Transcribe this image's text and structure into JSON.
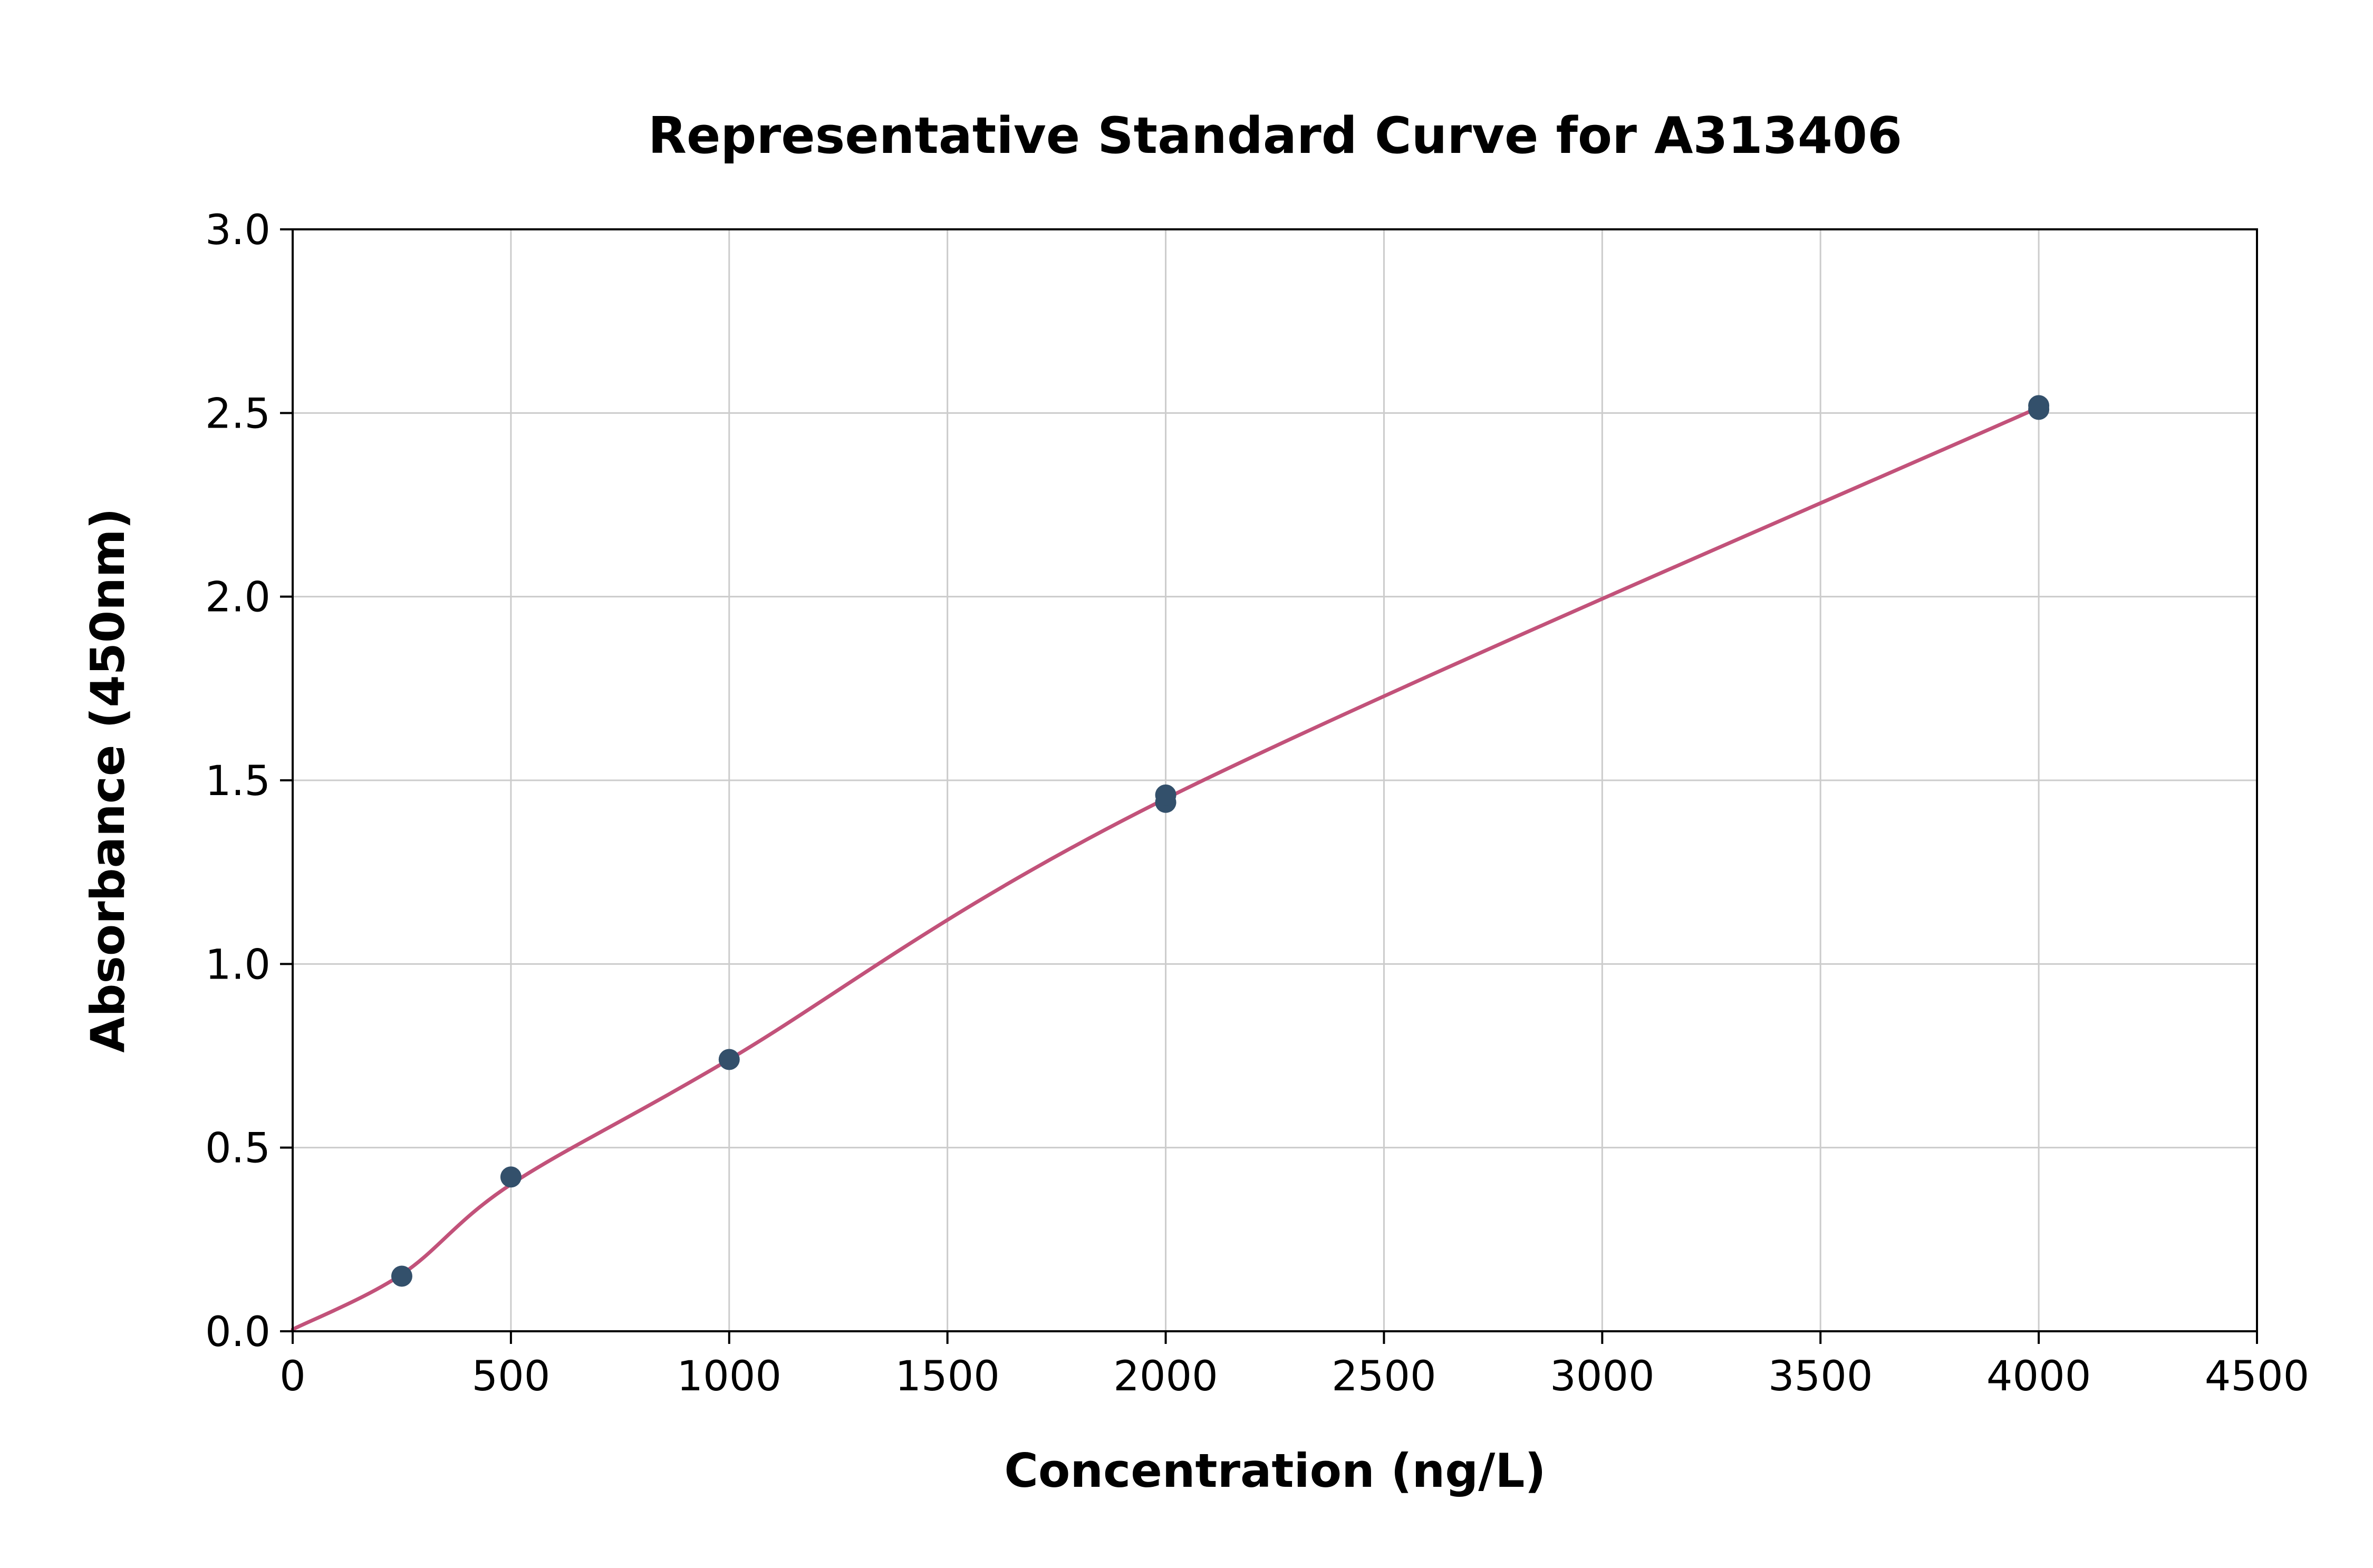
{
  "chart_data": {
    "type": "scatter",
    "title": "Representative Standard Curve for A313406",
    "xlabel": "Concentration (ng/L)",
    "ylabel": "Absorbance (450nm)",
    "xlim": [
      0,
      4500
    ],
    "ylim": [
      0,
      3
    ],
    "x_ticks": [
      0,
      500,
      1000,
      1500,
      2000,
      2500,
      3000,
      3500,
      4000,
      4500
    ],
    "x_tick_labels": [
      "0",
      "500",
      "1000",
      "1500",
      "2000",
      "2500",
      "3000",
      "3500",
      "4000",
      "4500"
    ],
    "y_ticks": [
      0,
      0.5,
      1,
      1.5,
      2,
      2.5,
      3
    ],
    "y_tick_labels": [
      "0.0",
      "0.5",
      "1.0",
      "1.5",
      "2.0",
      "2.5",
      "3.0"
    ],
    "grid": true,
    "legend_position": "none",
    "points": [
      [
        250,
        0.15
      ],
      [
        500,
        0.42
      ],
      [
        1000,
        0.74
      ],
      [
        2000,
        1.44
      ],
      [
        2000,
        1.46
      ],
      [
        4000,
        2.51
      ],
      [
        4000,
        2.52
      ]
    ],
    "curve": [
      [
        0,
        0.005
      ],
      [
        250,
        0.155
      ],
      [
        500,
        0.4
      ],
      [
        1000,
        0.74
      ],
      [
        2000,
        1.45
      ],
      [
        4000,
        2.515
      ]
    ],
    "colors": {
      "curve": "#c2527a",
      "point": "#33506b",
      "grid": "#cccccc",
      "axis": "#000000",
      "background": "#ffffff"
    }
  }
}
